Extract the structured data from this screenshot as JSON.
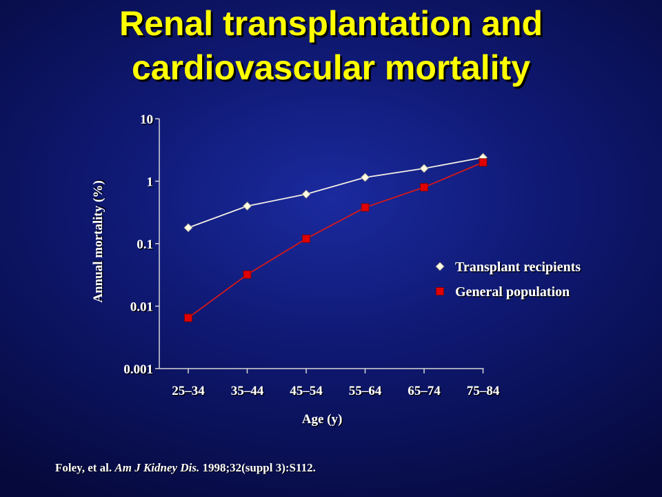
{
  "slide": {
    "title_line1": "Renal transplantation and",
    "title_line2": "cardiovascular mortality",
    "citation": {
      "authors": "Foley, et al.",
      "journal": "Am J Kidney Dis.",
      "ref": "1998;32(suppl 3):S112."
    }
  },
  "colors": {
    "background": "#0e1870",
    "title": "#ffff00",
    "text": "#ffffff",
    "series_transplant": "#fffbe0",
    "series_general": "#e00000",
    "line_general": "#d81818"
  },
  "chart_data": {
    "type": "line",
    "xlabel": "Age (y)",
    "ylabel": "Annual mortality (%)",
    "yscale": "log",
    "ylim": [
      0.001,
      10
    ],
    "yticks": [
      {
        "value": 10,
        "label": "10"
      },
      {
        "value": 1,
        "label": "1"
      },
      {
        "value": 0.1,
        "label": "0.1"
      },
      {
        "value": 0.01,
        "label": "0.01"
      },
      {
        "value": 0.001,
        "label": "0.001"
      }
    ],
    "categories": [
      "25–34",
      "35–44",
      "45–54",
      "55–64",
      "65–74",
      "75–84"
    ],
    "legend_position": "right",
    "grid": false,
    "series": [
      {
        "name": "Transplant recipients",
        "marker": "diamond",
        "values": [
          0.18,
          0.4,
          0.62,
          1.15,
          1.6,
          2.4
        ]
      },
      {
        "name": "General population",
        "marker": "square",
        "values": [
          0.0065,
          0.032,
          0.12,
          0.38,
          0.8,
          2.0
        ]
      }
    ]
  }
}
